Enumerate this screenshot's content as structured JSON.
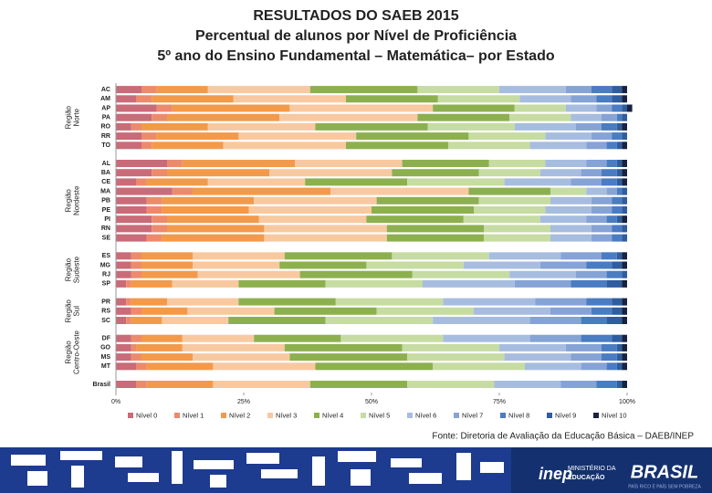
{
  "chart_data": {
    "type": "stacked-barh",
    "title": "RESULTADOS DO SAEB 2015",
    "subtitle": [
      "Percentual de alunos por Nível de Proficiência",
      "5º ano do Ensino Fundamental – Matemática– por Estado"
    ],
    "groups": [
      {
        "label": "Região Norte",
        "categories": [
          "AC",
          "AM",
          "AP",
          "PA",
          "RO",
          "RR",
          "TO"
        ]
      },
      {
        "label": "Região Nordeste",
        "categories": [
          "AL",
          "BA",
          "CE",
          "MA",
          "PB",
          "PE",
          "PI",
          "RN",
          "SE"
        ]
      },
      {
        "label": "Região Sudeste",
        "categories": [
          "ES",
          "MG",
          "RJ",
          "SP"
        ]
      },
      {
        "label": "Região Sul",
        "categories": [
          "PR",
          "RS",
          "SC"
        ]
      },
      {
        "label": "Região Centro-Oeste",
        "categories": [
          "DF",
          "GO",
          "MS",
          "MT"
        ]
      },
      {
        "categories": [
          "Brasil"
        ]
      }
    ],
    "xlim": [
      0,
      100
    ],
    "xticks": [
      {
        "value": 0,
        "label": "0%"
      },
      {
        "value": 25,
        "label": "25%"
      },
      {
        "value": 50,
        "label": "50%"
      },
      {
        "value": 75,
        "label": "75%"
      },
      {
        "value": 100,
        "label": "100%"
      }
    ],
    "legend": "bottom",
    "series": [
      {
        "name": "Nível 0",
        "color": "#c96b78",
        "values": [
          5,
          4,
          8,
          7,
          3,
          5,
          5,
          10,
          7,
          4,
          11,
          6,
          6,
          7,
          7,
          6,
          3,
          3,
          3,
          2,
          2,
          3,
          2,
          3,
          3,
          3,
          4,
          4
        ]
      },
      {
        "name": "Nível 1",
        "color": "#ee8a6c",
        "values": [
          3,
          3,
          3,
          3,
          2,
          3,
          2,
          3,
          3,
          2,
          4,
          3,
          3,
          3,
          3,
          3,
          2,
          2,
          2,
          1,
          1,
          2,
          1,
          2,
          1,
          2,
          2,
          2
        ]
      },
      {
        "name": "Nível 2",
        "color": "#f39a4a",
        "values": [
          10,
          16,
          23,
          22,
          13,
          16,
          14,
          22,
          20,
          12,
          27,
          18,
          17,
          18,
          19,
          20,
          10,
          10,
          11,
          8,
          7,
          9,
          6,
          8,
          9,
          10,
          13,
          13
        ]
      },
      {
        "name": "Nível 3",
        "color": "#f8c9a0",
        "values": [
          20,
          22,
          28,
          27,
          21,
          23,
          24,
          21,
          24,
          19,
          27,
          24,
          24,
          21,
          24,
          24,
          18,
          17,
          20,
          13,
          14,
          17,
          13,
          14,
          20,
          19,
          20,
          19
        ]
      },
      {
        "name": "Nível 4",
        "color": "#8db04f",
        "values": [
          21,
          18,
          16,
          18,
          22,
          22,
          20,
          17,
          17,
          20,
          16,
          20,
          20,
          19,
          19,
          19,
          21,
          17,
          22,
          17,
          19,
          20,
          19,
          17,
          23,
          23,
          23,
          19
        ]
      },
      {
        "name": "Nível 5",
        "color": "#c6dca2",
        "values": [
          16,
          16,
          10,
          12,
          17,
          15,
          16,
          11,
          12,
          19,
          7,
          14,
          14,
          15,
          13,
          13,
          19,
          19,
          19,
          19,
          21,
          19,
          21,
          20,
          19,
          19,
          18,
          17
        ]
      },
      {
        "name": "Nível 6",
        "color": "#a7bde0",
        "values": [
          13,
          10,
          6,
          6,
          12,
          9,
          11,
          8,
          8,
          13,
          4,
          8,
          9,
          9,
          8,
          8,
          14,
          15,
          13,
          18,
          18,
          15,
          19,
          17,
          13,
          13,
          11,
          13
        ]
      },
      {
        "name": "Nível 7",
        "color": "#86a3d6",
        "values": [
          5,
          5,
          3,
          3,
          5,
          4,
          4,
          4,
          4,
          6,
          2,
          4,
          4,
          4,
          4,
          4,
          8,
          9,
          6,
          11,
          10,
          8,
          10,
          10,
          7,
          6,
          5,
          7
        ]
      },
      {
        "name": "Nível 8",
        "color": "#4a7cc2",
        "values": [
          4,
          3,
          2,
          1,
          3,
          2,
          2,
          2,
          3,
          3,
          1,
          2,
          2,
          2,
          2,
          2,
          3,
          5,
          3,
          7,
          5,
          4,
          5,
          6,
          3,
          3,
          2,
          4
        ]
      },
      {
        "name": "Nível 9",
        "color": "#2f5d9e",
        "values": [
          2,
          2,
          1,
          1,
          1,
          1,
          1,
          1,
          1,
          1,
          1,
          1,
          1,
          1,
          1,
          1,
          1,
          2,
          1,
          3,
          2,
          2,
          3,
          2,
          1,
          1,
          1,
          1
        ]
      },
      {
        "name": "Nível 10",
        "color": "#17233f",
        "values": [
          1,
          1,
          1,
          0,
          1,
          0,
          1,
          1,
          1,
          1,
          0,
          0,
          0,
          1,
          0,
          0,
          1,
          1,
          0,
          1,
          1,
          1,
          1,
          1,
          1,
          1,
          1,
          1
        ]
      }
    ],
    "source": "Fonte: Diretoria de Avaliação da Educação Básica – DAEB/INEP"
  },
  "footer": {
    "inep": "inep",
    "ministry": [
      "MINISTÉRIO DA",
      "EDUCAÇÃO"
    ],
    "brasil": "BRASIL",
    "motto": "PAÍS RICO É PAÍS SEM POBREZA"
  }
}
